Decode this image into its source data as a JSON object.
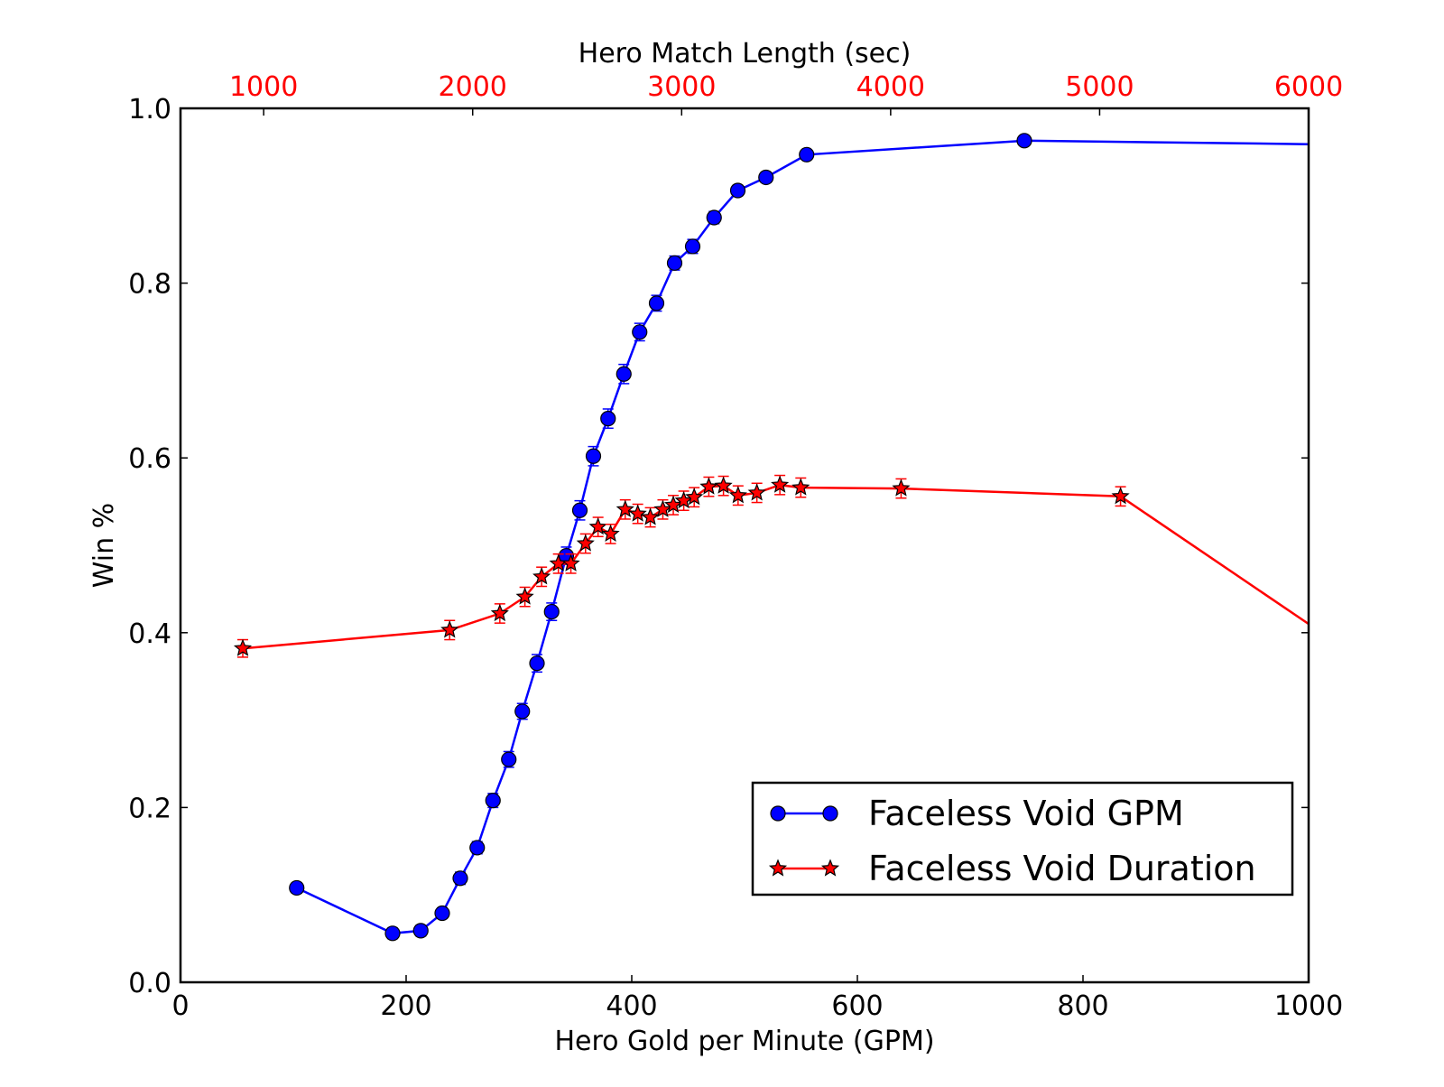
{
  "chart_data": {
    "type": "line",
    "title": "",
    "xlabel": "Hero Gold per Minute (GPM)",
    "ylabel": "Win %",
    "x2label": "Hero Match Length (sec)",
    "xlim": [
      0,
      1000
    ],
    "ylim": [
      0,
      1.0
    ],
    "x2lim": [
      602,
      6000
    ],
    "x_ticks": [
      0,
      200,
      400,
      600,
      800,
      1000
    ],
    "x_tick_labels": [
      "0",
      "200",
      "400",
      "600",
      "800",
      "1000"
    ],
    "y_ticks": [
      0,
      0.2,
      0.4,
      0.6,
      0.8,
      1.0
    ],
    "y_tick_labels": [
      "0.0",
      "0.2",
      "0.4",
      "0.6",
      "0.8",
      "1.0"
    ],
    "x2_ticks": [
      1000,
      2000,
      3000,
      4000,
      5000,
      6000
    ],
    "x2_tick_labels": [
      "1000",
      "2000",
      "3000",
      "4000",
      "5000",
      "6000"
    ],
    "x2_tick_color": "#ff0000",
    "grid": false,
    "legend_position": "lower-right",
    "series": [
      {
        "name": "Faceless Void GPM",
        "axis": "bottom",
        "color": "#0000ff",
        "marker": "circle",
        "x": [
          103,
          188,
          213,
          232,
          248,
          263,
          277,
          291,
          303,
          316,
          329,
          342,
          354,
          366,
          379,
          393,
          407,
          422,
          438,
          454,
          473,
          494,
          519,
          555,
          748,
          1000
        ],
        "y": [
          0.108,
          0.056,
          0.059,
          0.079,
          0.119,
          0.154,
          0.208,
          0.255,
          0.31,
          0.365,
          0.424,
          0.488,
          0.54,
          0.602,
          0.645,
          0.696,
          0.744,
          0.777,
          0.823,
          0.842,
          0.875,
          0.906,
          0.921,
          0.947,
          0.963,
          0.959
        ],
        "yerr": [
          0.006,
          0.006,
          0.006,
          0.006,
          0.007,
          0.007,
          0.008,
          0.009,
          0.009,
          0.01,
          0.01,
          0.01,
          0.011,
          0.011,
          0.011,
          0.011,
          0.01,
          0.009,
          0.008,
          0.008,
          0.007,
          0.006,
          0.006,
          0.005,
          0.005,
          0.005
        ],
        "marker_count": 25
      },
      {
        "name": "Faceless Void Duration",
        "axis": "top",
        "color": "#ff0000",
        "marker": "star",
        "x": [
          900,
          1890,
          2130,
          2250,
          2330,
          2410,
          2470,
          2540,
          2600,
          2660,
          2730,
          2790,
          2850,
          2910,
          2960,
          3010,
          3060,
          3130,
          3200,
          3270,
          3360,
          3470,
          3570,
          4050,
          5100,
          6000
        ],
        "y": [
          0.382,
          0.403,
          0.422,
          0.441,
          0.464,
          0.479,
          0.479,
          0.502,
          0.521,
          0.513,
          0.541,
          0.536,
          0.532,
          0.541,
          0.546,
          0.551,
          0.555,
          0.567,
          0.568,
          0.557,
          0.56,
          0.569,
          0.566,
          0.565,
          0.556,
          0.41
        ],
        "yerr": [
          0.01,
          0.011,
          0.011,
          0.011,
          0.011,
          0.011,
          0.011,
          0.011,
          0.011,
          0.011,
          0.011,
          0.011,
          0.011,
          0.011,
          0.011,
          0.011,
          0.011,
          0.011,
          0.011,
          0.011,
          0.011,
          0.011,
          0.011,
          0.011,
          0.011,
          0.011
        ],
        "marker_count": 25
      }
    ]
  }
}
